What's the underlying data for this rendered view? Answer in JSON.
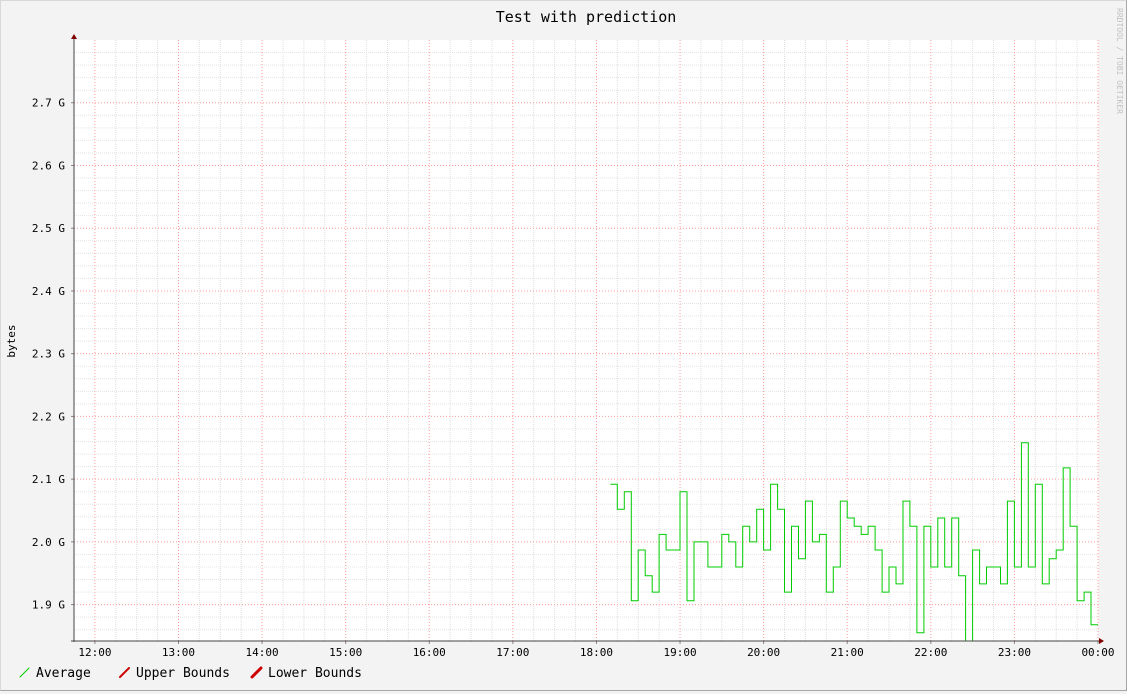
{
  "chart_data": {
    "type": "line",
    "title": "Test with prediction",
    "ylabel": "bytes",
    "watermark": "RRDTOOL / TOBI OETIKER",
    "x_ticks": [
      "12:00",
      "13:00",
      "14:00",
      "15:00",
      "16:00",
      "17:00",
      "18:00",
      "19:00",
      "20:00",
      "21:00",
      "22:00",
      "23:00",
      "00:00"
    ],
    "y_ticks": [
      {
        "value": 1.9,
        "label": "1.9 G"
      },
      {
        "value": 2.0,
        "label": "2.0 G"
      },
      {
        "value": 2.1,
        "label": "2.1 G"
      },
      {
        "value": 2.2,
        "label": "2.2 G"
      },
      {
        "value": 2.3,
        "label": "2.3 G"
      },
      {
        "value": 2.4,
        "label": "2.4 G"
      },
      {
        "value": 2.5,
        "label": "2.5 G"
      },
      {
        "value": 2.6,
        "label": "2.6 G"
      },
      {
        "value": 2.7,
        "label": "2.7 G"
      }
    ],
    "xlim_hours": [
      11.75,
      24.0
    ],
    "ylim": [
      1.842,
      2.8
    ],
    "grid": true,
    "legend_position": "bottom-left",
    "legend": [
      {
        "name": "Average",
        "color": "#00cc00"
      },
      {
        "name": "Upper Bounds",
        "color": "#cc0000"
      },
      {
        "name": "Lower Bounds",
        "color": "#cc0000"
      }
    ],
    "series": [
      {
        "name": "Average",
        "color": "#00cc00",
        "step_minutes": 5,
        "start_time": "18:10",
        "values": [
          2.092,
          2.052,
          2.08,
          1.906,
          1.987,
          1.946,
          1.92,
          2.012,
          1.987,
          1.987,
          2.08,
          1.906,
          2.0,
          2.0,
          1.96,
          1.96,
          2.012,
          2.0,
          1.96,
          2.025,
          2.0,
          2.052,
          1.987,
          2.092,
          2.052,
          1.92,
          2.025,
          1.973,
          2.065,
          2.0,
          2.012,
          1.92,
          1.96,
          2.065,
          2.038,
          2.025,
          2.012,
          2.025,
          1.987,
          1.92,
          1.96,
          1.933,
          2.065,
          2.025,
          1.855,
          2.025,
          1.96,
          2.038,
          1.96,
          2.038,
          1.946,
          1.842,
          1.987,
          1.933,
          1.96,
          1.96,
          1.933,
          2.065,
          1.96,
          2.158,
          1.96,
          2.092,
          1.933,
          1.973,
          1.987,
          2.118,
          2.025,
          1.906,
          1.92,
          1.868
        ]
      }
    ]
  }
}
